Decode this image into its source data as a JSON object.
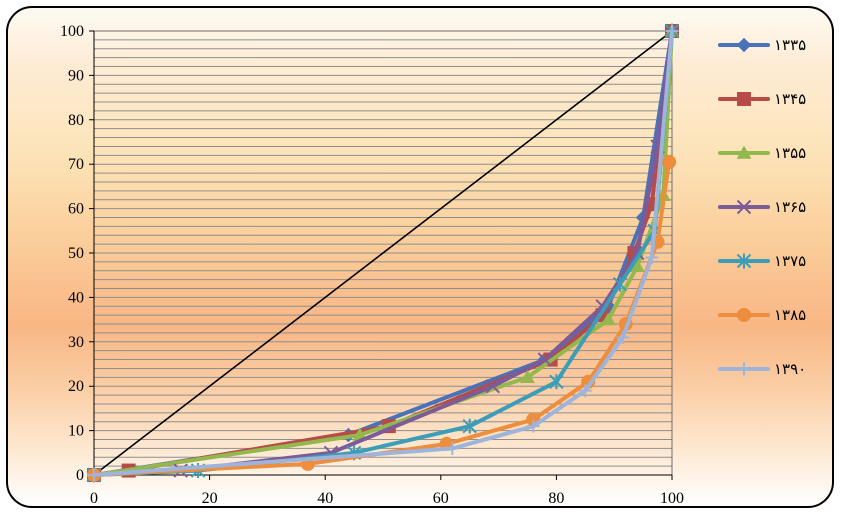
{
  "chart_data": {
    "type": "line",
    "title": "",
    "xlabel": "",
    "ylabel": "",
    "xlim": [
      0,
      100
    ],
    "ylim": [
      0,
      100
    ],
    "x_ticks": [
      "0",
      "20",
      "40",
      "60",
      "80",
      "100"
    ],
    "y_ticks": [
      "0",
      "10",
      "20",
      "30",
      "40",
      "50",
      "60",
      "70",
      "80",
      "90",
      "100"
    ],
    "grid": "horizontal minor lines every 2 units",
    "legend_position": "right",
    "equality_line": {
      "x": [
        0,
        100
      ],
      "y": [
        0,
        100
      ],
      "color": "#000000"
    },
    "series": [
      {
        "name": "۱۳۳۵",
        "color": "#4a72b8",
        "marker": "diamond",
        "x": [
          0,
          44,
          78,
          89,
          95,
          100
        ],
        "y": [
          0,
          9,
          26,
          38,
          58,
          100
        ]
      },
      {
        "name": "۱۳۴۵",
        "color": "#b64b48",
        "marker": "square",
        "x": [
          0,
          6,
          51,
          79,
          88,
          93.5,
          96.5,
          100
        ],
        "y": [
          0,
          1,
          11,
          26,
          36,
          50,
          61,
          100
        ]
      },
      {
        "name": "۱۳۵۵",
        "color": "#93b84e",
        "marker": "triangle",
        "x": [
          0,
          46,
          75,
          89,
          94,
          98.5,
          100
        ],
        "y": [
          0,
          9,
          22,
          35,
          47,
          63,
          100
        ]
      },
      {
        "name": "۱۳۶۵",
        "color": "#7d5b98",
        "marker": "x",
        "x": [
          0,
          15,
          41,
          69,
          78,
          88,
          94,
          97.5,
          100
        ],
        "y": [
          0,
          1,
          5,
          20,
          26,
          38,
          50,
          74,
          100
        ]
      },
      {
        "name": "۱۳۷۵",
        "color": "#3c9db9",
        "marker": "star",
        "x": [
          0,
          18,
          45,
          65,
          80,
          91,
          97,
          100
        ],
        "y": [
          0,
          1,
          5,
          11,
          21,
          43,
          55,
          100
        ]
      },
      {
        "name": "۱۳۸۵",
        "color": "#ee8d3c",
        "marker": "circle",
        "x": [
          0,
          37,
          61,
          76,
          85.5,
          92,
          97.5,
          99.5
        ],
        "y": [
          0,
          2.5,
          7,
          12.5,
          21,
          34,
          52.5,
          70.5
        ]
      },
      {
        "name": "۱۳۹۰",
        "color": "#9fb4db",
        "marker": "plus",
        "x": [
          0,
          62,
          76,
          85,
          91.5,
          96.5,
          100
        ],
        "y": [
          0,
          6,
          11,
          19,
          31,
          49,
          100
        ]
      }
    ]
  }
}
